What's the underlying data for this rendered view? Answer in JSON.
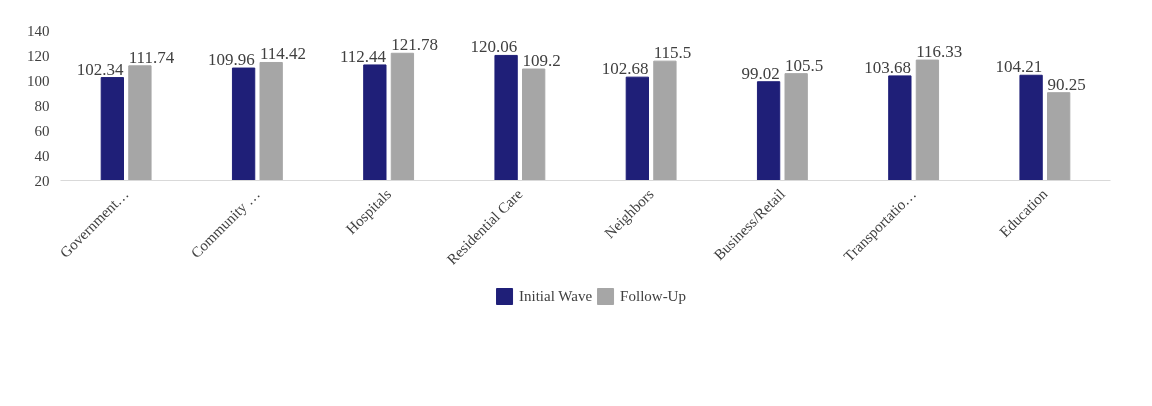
{
  "chart_data": {
    "type": "bar",
    "categories": [
      "Government…",
      "Community …",
      "Hospitals",
      "Residential Care",
      "Neighbors",
      "Business/Retail",
      "Transportatio…",
      "Education"
    ],
    "series": [
      {
        "name": "Initial Wave",
        "color": "#1f1f78",
        "values": [
          102.34,
          109.96,
          112.44,
          120.06,
          102.68,
          99.02,
          103.68,
          104.21
        ]
      },
      {
        "name": "Follow-Up",
        "color": "#a6a6a6",
        "values": [
          111.74,
          114.42,
          121.78,
          109.2,
          115.5,
          105.5,
          116.33,
          90.25
        ]
      }
    ],
    "ylim": [
      20,
      140
    ],
    "yticks": [
      20,
      40,
      60,
      80,
      100,
      120,
      140
    ],
    "grid": false,
    "legend": "bottom",
    "data_labels": true
  }
}
